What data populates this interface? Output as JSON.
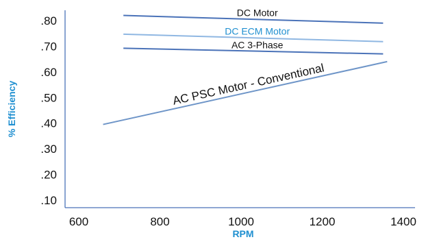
{
  "chart_data": {
    "type": "line",
    "title": "",
    "xlabel": "RPM",
    "ylabel": "% Efficiency",
    "xlim": [
      600,
      1400
    ],
    "ylim": [
      0.07,
      0.85
    ],
    "x_ticks": [
      "600",
      "800",
      "1000",
      "1200",
      "1400"
    ],
    "y_ticks": [
      ".80",
      ".70",
      ".60",
      ".50",
      ".40",
      ".30",
      ".20",
      ".10"
    ],
    "grid": false,
    "series": [
      {
        "name": "DC Motor",
        "x": [
          710,
          1350
        ],
        "y": [
          0.82,
          0.79
        ],
        "line_color": "#4a72b8",
        "label_color": "#111111"
      },
      {
        "name": "DC ECM Motor",
        "x": [
          710,
          1350
        ],
        "y": [
          0.747,
          0.718
        ],
        "line_color": "#8fb7e2",
        "label_color": "#1f8fd0"
      },
      {
        "name": "AC 3-Phase",
        "x": [
          710,
          1350
        ],
        "y": [
          0.692,
          0.67
        ],
        "line_color": "#4a72b8",
        "label_color": "#111111"
      },
      {
        "name": "AC PSC Motor - Conventional",
        "x": [
          660,
          1360
        ],
        "y": [
          0.395,
          0.64
        ],
        "line_color": "#6e95c8",
        "label_color": "#111111"
      }
    ],
    "colors": {
      "axis": "#4a72b8",
      "axis_title": "#1f8fd0"
    }
  }
}
